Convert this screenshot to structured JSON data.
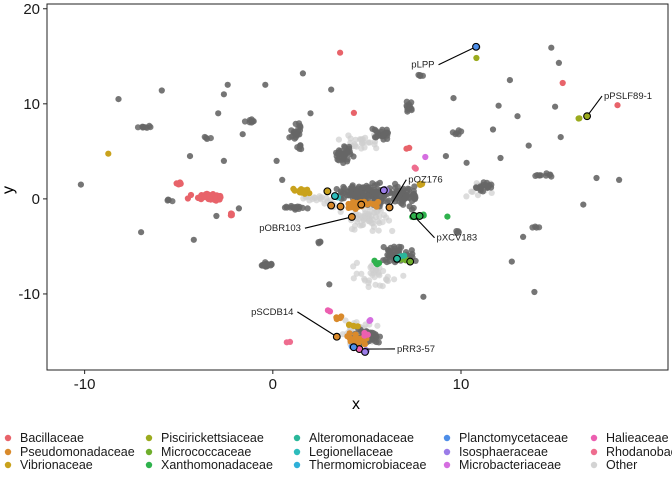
{
  "chart_data": {
    "type": "scatter",
    "xlabel": "x",
    "ylabel": "y",
    "xlim": [
      -12,
      21
    ],
    "ylim": [
      -18,
      20.5
    ],
    "x_ticks": [
      -10,
      0,
      10
    ],
    "y_ticks": [
      -10,
      0,
      10,
      20
    ],
    "x_tick_labels": [
      "-10",
      "0",
      "10"
    ],
    "y_tick_labels": [
      "-10",
      "0",
      "10",
      "20"
    ],
    "grid": false,
    "legend_position": "bottom",
    "legend": [
      {
        "label": "Bacillaceae",
        "color": "#e8636a"
      },
      {
        "label": "Pseudomonadaceae",
        "color": "#d98a2b"
      },
      {
        "label": "Vibrionaceae",
        "color": "#c9a21c"
      },
      {
        "label": "Piscirickettsiaceae",
        "color": "#9bab1e"
      },
      {
        "label": "Micrococcaceae",
        "color": "#6fae2c"
      },
      {
        "label": "Xanthomonadaceae",
        "color": "#2fb24d"
      },
      {
        "label": "Alteromonadaceae",
        "color": "#2ab79a"
      },
      {
        "label": "Legionellaceae",
        "color": "#2dbcbc"
      },
      {
        "label": "Thermomicrobiaceae",
        "color": "#2fb0d8"
      },
      {
        "label": "Planctomycetaceae",
        "color": "#4e8ee8"
      },
      {
        "label": "Isosphaeraceae",
        "color": "#9b7ce8"
      },
      {
        "label": "Microbacteriaceae",
        "color": "#d56ee0"
      },
      {
        "label": "Halieaceae",
        "color": "#ec5fb0"
      },
      {
        "label": "Rhodanobac",
        "color": "#ee6d8f"
      },
      {
        "label": "Other",
        "color": "#d3d3d3"
      }
    ],
    "annotations": [
      {
        "label": "pLPP",
        "point": [
          10.8,
          16
        ],
        "text_at": [
          8.7,
          13.8
        ]
      },
      {
        "label": "pPSLF89-1",
        "point": [
          16.7,
          8.7
        ],
        "text_at": [
          17.6,
          10.5
        ]
      },
      {
        "label": "pOZ176",
        "point": [
          6.2,
          -0.9
        ],
        "text_at": [
          7.2,
          1.7
        ]
      },
      {
        "label": "pOBR103",
        "point": [
          4.2,
          -1.9
        ],
        "text_at": [
          1.6,
          -3.4
        ]
      },
      {
        "label": "pXCV183",
        "point": [
          7.5,
          -1.8
        ],
        "text_at": [
          8.7,
          -4.4
        ]
      },
      {
        "label": "pSCDB14",
        "point": [
          3.4,
          -14.5
        ],
        "text_at": [
          1.2,
          -12.2
        ]
      },
      {
        "label": "pRR3-57",
        "point": [
          4.6,
          -15.8
        ],
        "text_at": [
          6.6,
          -16.1
        ]
      }
    ],
    "highlight_points": [
      {
        "x": 10.8,
        "y": 16.0,
        "color": "#4e8ee8"
      },
      {
        "x": 16.7,
        "y": 8.7,
        "color": "#9bab1e"
      },
      {
        "x": 6.2,
        "y": -0.9,
        "color": "#d98a2b"
      },
      {
        "x": 5.9,
        "y": 0.9,
        "color": "#9b7ce8"
      },
      {
        "x": 4.2,
        "y": -1.9,
        "color": "#d98a2b"
      },
      {
        "x": 3.6,
        "y": -0.8,
        "color": "#d98a2b"
      },
      {
        "x": 3.1,
        "y": -0.7,
        "color": "#d98a2b"
      },
      {
        "x": 4.7,
        "y": -0.6,
        "color": "#d98a2b"
      },
      {
        "x": 2.9,
        "y": 0.8,
        "color": "#c9a21c"
      },
      {
        "x": 3.3,
        "y": 0.3,
        "color": "#2dbcbc"
      },
      {
        "x": 7.5,
        "y": -1.8,
        "color": "#2fb24d"
      },
      {
        "x": 7.8,
        "y": -1.8,
        "color": "#2fb24d"
      },
      {
        "x": 6.6,
        "y": -6.3,
        "color": "#2ab79a"
      },
      {
        "x": 7.3,
        "y": -6.6,
        "color": "#6fae2c"
      },
      {
        "x": 3.4,
        "y": -14.5,
        "color": "#d98a2b"
      },
      {
        "x": 4.6,
        "y": -15.8,
        "color": "#ec5fb0"
      },
      {
        "x": 4.3,
        "y": -15.6,
        "color": "#4e8ee8"
      },
      {
        "x": 4.9,
        "y": -16.1,
        "color": "#9b7ce8"
      }
    ]
  }
}
